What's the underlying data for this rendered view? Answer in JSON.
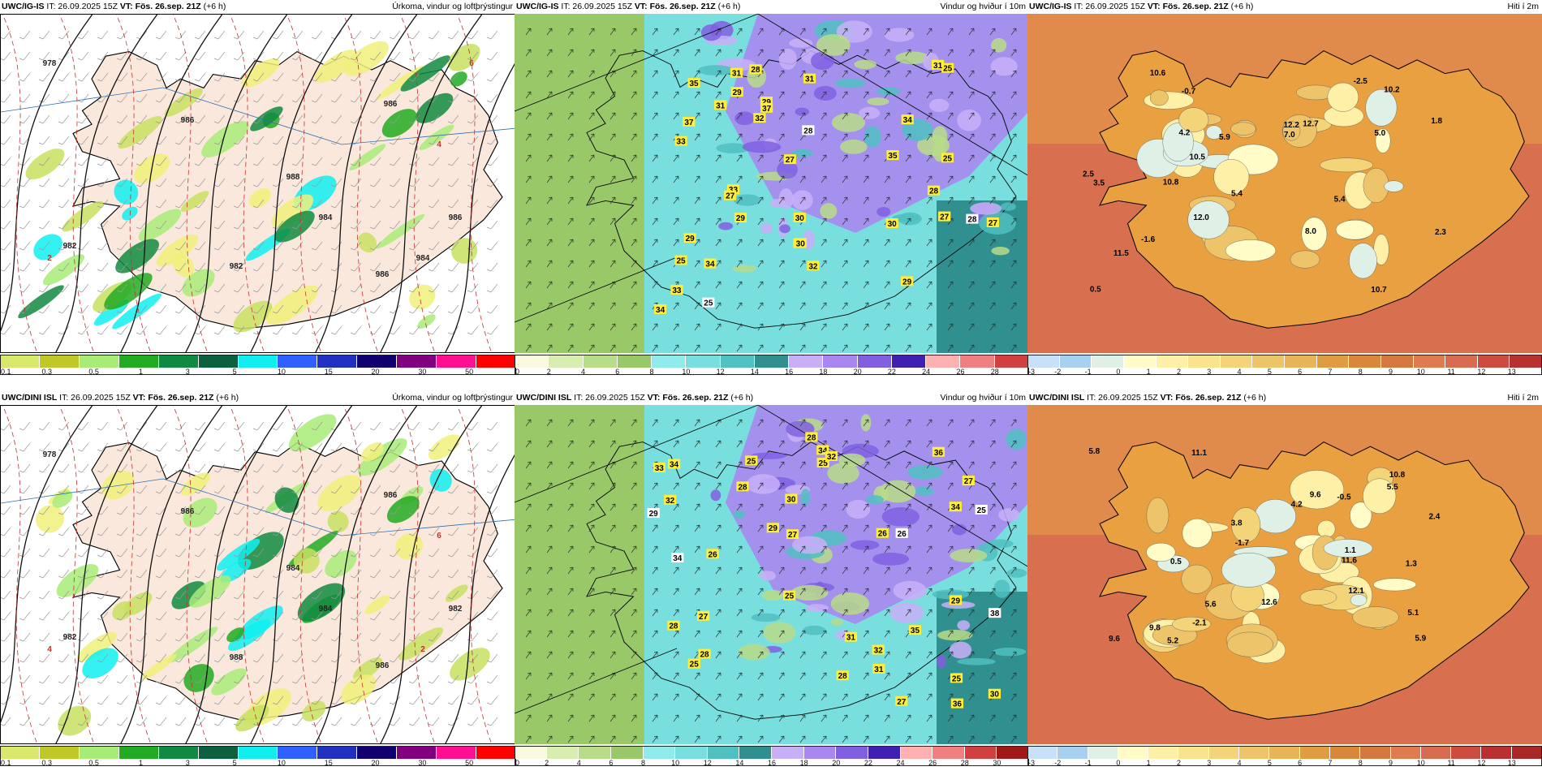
{
  "panels": [
    {
      "model": "UWC/IG-IS",
      "it": "IT: 26.09.2025 15Z",
      "vt": "VT: Fös. 26.sep. 21Z",
      "lead": "(+6 h)",
      "title": "Úrkoma, vindur og loftþrýstingur",
      "colorbar": {
        "colors": [
          "#d8e86a",
          "#c0c828",
          "#a8ec78",
          "#22aa22",
          "#108a40",
          "#0c6040",
          "#10eef0",
          "#3060ff",
          "#2030c0",
          "#100070",
          "#800080",
          "#ff1090",
          "#ff0000"
        ],
        "ticks": [
          "0.1",
          "0.3",
          "0.5",
          "1",
          "3",
          "5",
          "10",
          "15",
          "20",
          "30",
          "50"
        ]
      },
      "labels": [
        "978",
        "982",
        "986",
        "986",
        "982",
        "984",
        "986",
        "988",
        "986",
        "984",
        "2",
        "4",
        "6"
      ]
    },
    {
      "model": "UWC/IG-IS",
      "it": "IT: 26.09.2025 15Z",
      "vt": "VT: Fös. 26.sep. 21Z",
      "lead": "(+6 h)",
      "title": "Vindur og hviður í 10m",
      "colorbar": {
        "colors": [
          "#fafae0",
          "#d8eeb0",
          "#b8dc88",
          "#98c868",
          "#90ecec",
          "#78dede",
          "#50c0c0",
          "#309090",
          "#c8b0f8",
          "#a888f0",
          "#8060e0",
          "#4020b0",
          "#ffb0b0",
          "#f08080",
          "#d04040"
        ],
        "ticks": [
          "0",
          "2",
          "4",
          "6",
          "8",
          "10",
          "12",
          "14",
          "16",
          "18",
          "20",
          "22",
          "24",
          "26",
          "28"
        ]
      },
      "gusts": [
        "25",
        "25",
        "27",
        "33",
        "31",
        "27",
        "29",
        "30",
        "33",
        "29",
        "34",
        "30",
        "32",
        "37",
        "31",
        "35",
        "34",
        "28",
        "30",
        "32",
        "29",
        "28",
        "27",
        "33",
        "31",
        "34",
        "37",
        "35",
        "31",
        "28",
        "27",
        "28",
        "29",
        "25",
        "25",
        "30",
        "29"
      ]
    },
    {
      "model": "UWC/IG-IS",
      "it": "IT: 26.09.2025 15Z",
      "vt": "VT: Fös. 26.sep. 21Z",
      "lead": "(+6 h)",
      "title": "Hiti í 2m",
      "colorbar": {
        "colors": [
          "#c8e0f8",
          "#a8d0f0",
          "#dff0e6",
          "#fffcc8",
          "#fff0a8",
          "#f8e48c",
          "#f4d478",
          "#eec46a",
          "#e8b458",
          "#e09c40",
          "#d88838",
          "#d47840",
          "#de7c50",
          "#d86c50",
          "#cc4c40",
          "#b83030"
        ],
        "ticks": [
          "-3",
          "-2",
          "-1",
          "0",
          "1",
          "2",
          "3",
          "4",
          "5",
          "6",
          "7",
          "8",
          "9",
          "10",
          "11",
          "12",
          "13"
        ]
      },
      "temps": [
        "10.2",
        "5.9",
        "5.4",
        "7.0",
        "11.5",
        "12.2",
        "8.0",
        "12.7",
        "10.5",
        "12.0",
        "10.6",
        "4.2",
        "2.5",
        "10.8",
        "5.0",
        "3.5",
        "0.5",
        "-1.6",
        "-2.5",
        "2.3",
        "10.7",
        "5.4",
        "-0.7",
        "1.8"
      ]
    },
    {
      "model": "UWC/DINI ISL",
      "it": "IT: 26.09.2025 15Z",
      "vt": "VT: Fös. 26.sep. 21Z",
      "lead": "(+6 h)",
      "title": "Úrkoma, vindur og loftþrýstingur",
      "colorbar": {
        "colors": [
          "#d8e86a",
          "#c0c828",
          "#a8ec78",
          "#22aa22",
          "#108a40",
          "#0c6040",
          "#10eef0",
          "#3060ff",
          "#2030c0",
          "#100070",
          "#800080",
          "#ff1090",
          "#ff0000"
        ],
        "ticks": [
          "0.1",
          "0.3",
          "0.5",
          "1",
          "3",
          "5",
          "10",
          "15",
          "20",
          "30",
          "50"
        ]
      },
      "labels": [
        "978",
        "982",
        "986",
        "986",
        "988",
        "984",
        "986",
        "984",
        "982",
        "2",
        "4",
        "6"
      ]
    },
    {
      "model": "UWC/DINI ISL",
      "it": "IT: 26.09.2025 15Z",
      "vt": "VT: Fös. 26.sep. 21Z",
      "lead": "(+6 h)",
      "title": "Vindur og hviður í 10m",
      "colorbar": {
        "colors": [
          "#fafae0",
          "#d8eeb0",
          "#b8dc88",
          "#98c868",
          "#90ecec",
          "#78dede",
          "#50c0c0",
          "#309090",
          "#c8b0f8",
          "#a888f0",
          "#8060e0",
          "#4020b0",
          "#ffb0b0",
          "#f08080",
          "#d04040",
          "#a01818"
        ],
        "ticks": [
          "0",
          "2",
          "4",
          "6",
          "8",
          "10",
          "12",
          "14",
          "16",
          "18",
          "20",
          "22",
          "24",
          "26",
          "28",
          "30"
        ]
      },
      "gusts": [
        "27",
        "28",
        "25",
        "32",
        "35",
        "29",
        "25",
        "27",
        "30",
        "32",
        "30",
        "27",
        "34",
        "28",
        "31",
        "25",
        "38",
        "26",
        "33",
        "29",
        "34",
        "31",
        "28",
        "25",
        "25",
        "28",
        "32",
        "36",
        "34",
        "34",
        "36",
        "26",
        "29",
        "27",
        "26",
        "25",
        "28"
      ]
    },
    {
      "model": "UWC/DINI ISL",
      "it": "IT: 26.09.2025 15Z",
      "vt": "VT: Fös. 26.sep. 21Z",
      "lead": "(+6 h)",
      "title": "Hiti í 2m",
      "colorbar": {
        "colors": [
          "#c8e0f8",
          "#a8d0f0",
          "#dff0e6",
          "#fffcc8",
          "#fff0a8",
          "#f8e48c",
          "#f4d478",
          "#eec46a",
          "#e8b458",
          "#e09c40",
          "#d88838",
          "#d47840",
          "#de7c50",
          "#d86c50",
          "#cc4c40",
          "#b83030",
          "#a82828"
        ],
        "ticks": [
          "-3",
          "-2",
          "-1",
          "0",
          "1",
          "2",
          "3",
          "4",
          "5",
          "6",
          "7",
          "8",
          "9",
          "10",
          "11",
          "12",
          "13"
        ]
      },
      "temps": [
        "9.6",
        "12.1",
        "9.6",
        "11.6",
        "5.9",
        "5.5",
        "11.1",
        "12.6",
        "4.2",
        "5.2",
        "1.3",
        "9.8",
        "10.8",
        "5.6",
        "5.8",
        "3.8",
        "0.5",
        "-1.7",
        "-2.1",
        "2.4",
        "-0.5",
        "5.1",
        "1.1"
      ]
    }
  ]
}
